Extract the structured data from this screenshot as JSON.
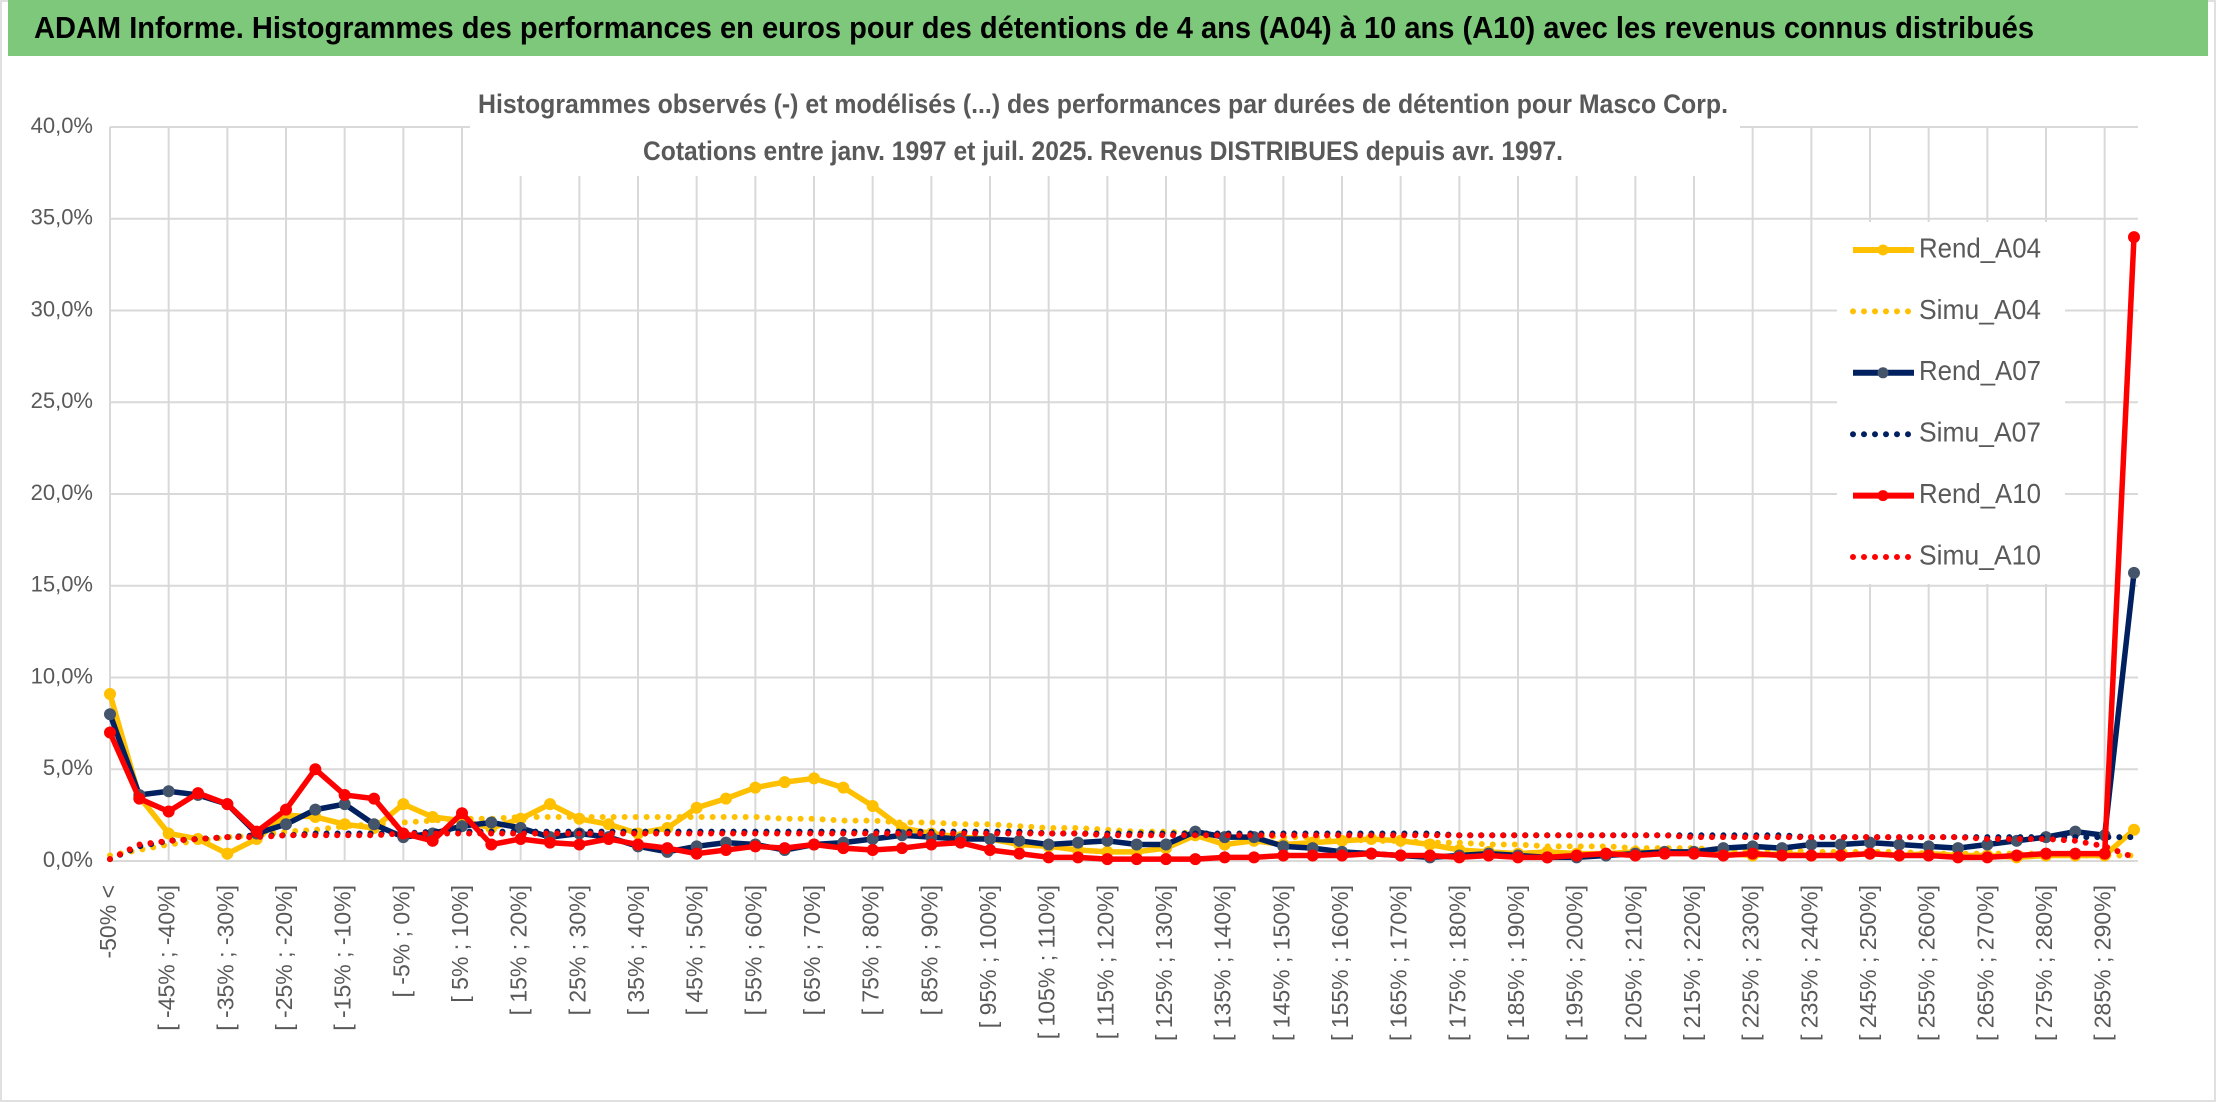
{
  "chart_data": {
    "type": "line",
    "title": "ADAM Informe. Histogrammes des performances en euros pour des détentions de 4 ans (A04) à 10 ans (A10) avec les revenus connus distribués",
    "subtitle": [
      "Histogrammes observés (-) et modélisés (...) des performances par durées de détention pour Masco Corp.",
      "Cotations entre janv. 1997 et juil. 2025. Revenus DISTRIBUES depuis avr. 1997."
    ],
    "categories": [
      "-50% <",
      null,
      "[ -45% ; -40%]",
      null,
      "[ -35% ; -30%]",
      null,
      "[ -25% ; -20%]",
      null,
      "[ -15% ; -10%]",
      null,
      "[ -5% ; 0%]",
      null,
      "[ 5% ; 10%]",
      null,
      "[ 15% ; 20%]",
      null,
      "[ 25% ; 30%]",
      null,
      "[ 35% ; 40%]",
      null,
      "[ 45% ; 50%]",
      null,
      "[ 55% ; 60%]",
      null,
      "[ 65% ; 70%]",
      null,
      "[ 75% ; 80%]",
      null,
      "[ 85% ; 90%]",
      null,
      "[ 95% ; 100%]",
      null,
      "[ 105% ; 110%]",
      null,
      "[ 115% ; 120%]",
      null,
      "[ 125% ; 130%]",
      null,
      "[ 135% ; 140%]",
      null,
      "[ 145% ; 150%]",
      null,
      "[ 155% ; 160%]",
      null,
      "[ 165% ; 170%]",
      null,
      "[ 175% ; 180%]",
      null,
      "[ 185% ; 190%]",
      null,
      "[ 195% ; 200%]",
      null,
      "[ 205% ; 210%]",
      null,
      "[ 215% ; 220%]",
      null,
      "[ 225% ; 230%]",
      null,
      "[ 235% ; 240%]",
      null,
      "[ 245% ; 250%]",
      null,
      "[ 255% ; 260%]",
      null,
      "[ 265% ; 270%]",
      null,
      "[ 275% ; 280%]",
      null,
      "[ 285% ; 290%]",
      null
    ],
    "series": [
      {
        "name": "Rend_A04",
        "color": "#ffc000",
        "style": "solid",
        "markers": true,
        "marker_color": "#ffc000",
        "values": [
          9.1,
          3.5,
          1.5,
          1.2,
          0.4,
          1.2,
          2.5,
          2.4,
          2.0,
          1.8,
          3.1,
          2.4,
          2.2,
          1.8,
          2.3,
          3.1,
          2.3,
          2.0,
          1.5,
          1.8,
          2.9,
          3.4,
          4.0,
          4.3,
          4.5,
          4.0,
          3.0,
          1.8,
          1.5,
          1.3,
          1.2,
          0.9,
          0.8,
          0.6,
          0.5,
          0.5,
          0.7,
          1.4,
          0.9,
          1.1,
          0.9,
          1.0,
          1.1,
          1.2,
          1.1,
          0.9,
          0.6,
          0.5,
          0.4,
          0.5,
          0.4,
          0.4,
          0.5,
          0.5,
          0.5,
          0.4,
          0.3,
          0.4,
          0.3,
          0.3,
          0.4,
          0.3,
          0.4,
          0.3,
          0.3,
          0.2,
          0.3,
          0.3,
          0.3,
          1.7
        ]
      },
      {
        "name": "Simu_A04",
        "color": "#ffc000",
        "style": "dotted",
        "markers": false,
        "values": [
          0.3,
          0.6,
          0.9,
          1.1,
          1.3,
          1.4,
          1.6,
          1.7,
          1.9,
          2.0,
          2.1,
          2.2,
          2.3,
          2.3,
          2.4,
          2.4,
          2.4,
          2.4,
          2.4,
          2.4,
          2.4,
          2.4,
          2.4,
          2.3,
          2.3,
          2.2,
          2.2,
          2.1,
          2.1,
          2.0,
          2.0,
          1.9,
          1.8,
          1.8,
          1.7,
          1.6,
          1.6,
          1.5,
          1.4,
          1.4,
          1.3,
          1.3,
          1.2,
          1.1,
          1.1,
          1.0,
          1.0,
          0.9,
          0.9,
          0.8,
          0.8,
          0.8,
          0.7,
          0.7,
          0.7,
          0.6,
          0.6,
          0.6,
          0.5,
          0.5,
          0.5,
          0.5,
          0.4,
          0.4,
          0.4,
          0.4,
          0.4,
          0.3,
          0.3,
          0.3
        ]
      },
      {
        "name": "Rend_A07",
        "color": "#002060",
        "style": "solid",
        "markers": true,
        "marker_color": "#44546a",
        "values": [
          8.0,
          3.6,
          3.8,
          3.6,
          3.1,
          1.5,
          2.0,
          2.8,
          3.1,
          2.0,
          1.3,
          1.5,
          1.9,
          2.1,
          1.8,
          1.3,
          1.5,
          1.3,
          0.8,
          0.5,
          0.8,
          1.0,
          0.9,
          0.6,
          0.9,
          1.0,
          1.2,
          1.4,
          1.3,
          1.2,
          1.2,
          1.1,
          0.9,
          1.0,
          1.1,
          0.9,
          0.9,
          1.6,
          1.3,
          1.3,
          0.8,
          0.7,
          0.5,
          0.4,
          0.3,
          0.2,
          0.3,
          0.4,
          0.3,
          0.2,
          0.2,
          0.3,
          0.4,
          0.5,
          0.5,
          0.7,
          0.8,
          0.7,
          0.9,
          0.9,
          1.0,
          0.9,
          0.8,
          0.7,
          0.9,
          1.1,
          1.3,
          1.6,
          1.4,
          15.7
        ]
      },
      {
        "name": "Simu_A07",
        "color": "#002060",
        "style": "dotted",
        "markers": false,
        "values": [
          0.1,
          0.8,
          1.1,
          1.2,
          1.3,
          1.4,
          1.4,
          1.5,
          1.5,
          1.5,
          1.5,
          1.6,
          1.6,
          1.6,
          1.6,
          1.6,
          1.6,
          1.6,
          1.6,
          1.6,
          1.6,
          1.6,
          1.6,
          1.6,
          1.6,
          1.6,
          1.6,
          1.6,
          1.6,
          1.6,
          1.6,
          1.6,
          1.5,
          1.5,
          1.5,
          1.5,
          1.5,
          1.5,
          1.5,
          1.5,
          1.5,
          1.5,
          1.5,
          1.5,
          1.5,
          1.5,
          1.4,
          1.4,
          1.4,
          1.4,
          1.4,
          1.4,
          1.4,
          1.4,
          1.4,
          1.4,
          1.4,
          1.4,
          1.3,
          1.3,
          1.3,
          1.3,
          1.3,
          1.3,
          1.3,
          1.3,
          1.3,
          1.3,
          1.3,
          1.3
        ]
      },
      {
        "name": "Rend_A10",
        "color": "#ff0000",
        "style": "solid",
        "markers": true,
        "marker_color": "#ff0000",
        "values": [
          7.0,
          3.4,
          2.7,
          3.7,
          3.1,
          1.6,
          2.8,
          5.0,
          3.6,
          3.4,
          1.5,
          1.1,
          2.6,
          0.9,
          1.2,
          1.0,
          0.9,
          1.2,
          0.9,
          0.7,
          0.4,
          0.6,
          0.8,
          0.7,
          0.9,
          0.7,
          0.6,
          0.7,
          0.9,
          1.0,
          0.6,
          0.4,
          0.2,
          0.2,
          0.1,
          0.1,
          0.1,
          0.1,
          0.2,
          0.2,
          0.3,
          0.3,
          0.3,
          0.4,
          0.3,
          0.3,
          0.2,
          0.3,
          0.2,
          0.2,
          0.3,
          0.4,
          0.3,
          0.4,
          0.4,
          0.3,
          0.4,
          0.3,
          0.3,
          0.3,
          0.4,
          0.3,
          0.3,
          0.2,
          0.2,
          0.3,
          0.4,
          0.4,
          0.4,
          34.0
        ]
      },
      {
        "name": "Simu_A10",
        "color": "#ff0000",
        "style": "dotted",
        "markers": false,
        "values": [
          0.1,
          0.9,
          1.1,
          1.2,
          1.3,
          1.3,
          1.4,
          1.4,
          1.4,
          1.4,
          1.5,
          1.5,
          1.5,
          1.5,
          1.5,
          1.5,
          1.5,
          1.5,
          1.5,
          1.5,
          1.5,
          1.5,
          1.5,
          1.5,
          1.5,
          1.5,
          1.5,
          1.5,
          1.5,
          1.5,
          1.5,
          1.5,
          1.5,
          1.5,
          1.4,
          1.4,
          1.4,
          1.4,
          1.4,
          1.4,
          1.4,
          1.4,
          1.4,
          1.4,
          1.4,
          1.4,
          1.4,
          1.4,
          1.4,
          1.4,
          1.4,
          1.4,
          1.4,
          1.4,
          1.3,
          1.3,
          1.3,
          1.3,
          1.3,
          1.3,
          1.3,
          1.3,
          1.3,
          1.3,
          1.2,
          1.2,
          1.2,
          1.1,
          0.8,
          0.2
        ]
      }
    ],
    "ylim": [
      0,
      40
    ],
    "yticks": [
      {
        "value": 0,
        "label": "0,0%"
      },
      {
        "value": 5,
        "label": "5,0%"
      },
      {
        "value": 10,
        "label": "10,0%"
      },
      {
        "value": 15,
        "label": "15,0%"
      },
      {
        "value": 20,
        "label": "20,0%"
      },
      {
        "value": 25,
        "label": "25,0%"
      },
      {
        "value": 30,
        "label": "30,0%"
      },
      {
        "value": 35,
        "label": "35,0%"
      },
      {
        "value": 40,
        "label": "40,0%"
      }
    ],
    "grid": true,
    "legend": "right",
    "title_background": "#7dc87a"
  }
}
